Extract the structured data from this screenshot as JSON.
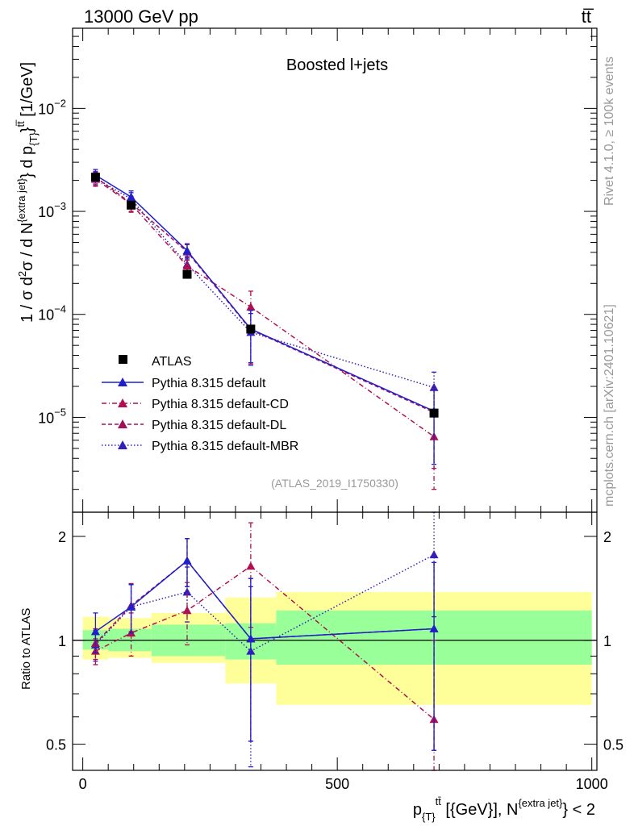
{
  "header": {
    "left": "13000 GeV pp",
    "right": "tt̅"
  },
  "side_labels": {
    "rivet": "Rivet 4.1.0, ≥ 100k events",
    "mcplots": "mcplots.cern.ch [arXiv:2401.10621]"
  },
  "colors": {
    "atlas": "#000000",
    "default": "#1f1fcc",
    "cd": "#b0104f",
    "dl": "#a0105a",
    "mbr": "#3320b8",
    "band_inner": "#99ff99",
    "band_outer": "#ffff99"
  },
  "chart_data": [
    {
      "type": "scatter",
      "scale": "log",
      "title": "Boosted l+jets",
      "analysis_tag": "(ATLAS_2019_I1750330)",
      "xlabel": "p_{T}^{tt̅} [{GeV}], N^{extra jet} < 2",
      "ylabel_parts": [
        "1 / σ d",
        "2",
        "σ / d N",
        "{extra jet}",
        "} d p",
        "{T}",
        "}",
        "tt̅",
        " [1/GeV]"
      ],
      "xlim": [
        -20,
        1010
      ],
      "ylim": [
        1.2e-06,
        0.06
      ],
      "x_ticks": [
        0,
        500,
        1000
      ],
      "y_ticks": [
        {
          "value": 1e-05,
          "base": "10",
          "exp": "−5"
        },
        {
          "value": 0.0001,
          "base": "10",
          "exp": "−4"
        },
        {
          "value": 0.001,
          "base": "10",
          "exp": "−3"
        },
        {
          "value": 0.01,
          "base": "10",
          "exp": "−2"
        }
      ],
      "x": [
        25,
        95,
        205,
        330,
        690
      ],
      "bin_edges": [
        0,
        50,
        135,
        280,
        380,
        1000
      ],
      "series": [
        {
          "name": "ATLAS",
          "style": "data",
          "values": [
            0.00215,
            0.00115,
            0.000245,
            7.2e-05,
            1.1e-05
          ]
        },
        {
          "name": "Pythia 8.315 default",
          "style": "solid",
          "values": [
            0.00225,
            0.00138,
            0.000415,
            7.2e-05,
            1.15e-05
          ],
          "err": [
            0.0003,
            0.0002,
            7e-05,
            3.8e-05,
            8e-06
          ]
        },
        {
          "name": "Pythia 8.315 default-CD",
          "style": "dashdot",
          "values": [
            0.00205,
            0.00118,
            0.000295,
            0.000118,
            6.5e-06
          ],
          "err": [
            0.0003,
            0.0002,
            6e-05,
            5e-05,
            4.5e-06
          ]
        },
        {
          "name": "Pythia 8.315 default-DL",
          "style": "dashed",
          "values": [
            0.00215,
            0.0012,
            0.000405,
            7.1e-05,
            1.12e-05
          ],
          "err": [
            0.0003,
            0.0002,
            7e-05,
            3.8e-05,
            8e-06
          ]
        },
        {
          "name": "Pythia 8.315 default-MBR",
          "style": "dotted",
          "values": [
            0.0021,
            0.00132,
            0.000305,
            6.7e-05,
            1.95e-05
          ],
          "err": [
            0.0003,
            0.0002,
            6e-05,
            3.5e-05,
            8e-06
          ]
        }
      ]
    },
    {
      "type": "scatter",
      "scale": "log",
      "ylabel": "Ratio to ATLAS",
      "xlim": [
        -20,
        1010
      ],
      "ylim": [
        0.42,
        2.35
      ],
      "x_ticks": [
        0,
        500,
        1000
      ],
      "y_ticks": [
        0.5,
        1,
        2
      ],
      "y_tick_labels": [
        "0.5",
        "1",
        "2"
      ],
      "x": [
        25,
        95,
        205,
        330,
        690
      ],
      "bin_edges": [
        0,
        50,
        135,
        280,
        380,
        1000
      ],
      "band_inner": [
        [
          0.94,
          1.07
        ],
        [
          0.93,
          1.08
        ],
        [
          0.9,
          1.11
        ],
        [
          0.88,
          1.12
        ],
        [
          0.85,
          1.22
        ]
      ],
      "band_outer": [
        [
          0.88,
          1.17
        ],
        [
          0.89,
          1.16
        ],
        [
          0.86,
          1.2
        ],
        [
          0.75,
          1.33
        ],
        [
          0.65,
          1.38
        ]
      ],
      "series": [
        {
          "name": "Pythia 8.315 default",
          "style": "solid",
          "values": [
            1.06,
            1.25,
            1.7,
            1.01,
            1.08
          ],
          "err": [
            0.14,
            0.2,
            0.27,
            0.5,
            0.6
          ]
        },
        {
          "name": "Pythia 8.315 default-CD",
          "style": "dashdot",
          "values": [
            0.93,
            1.05,
            1.22,
            1.64,
            0.59
          ],
          "err": [
            0.08,
            0.15,
            0.25,
            0.55,
            0.41
          ]
        },
        {
          "name": "Pythia 8.315 default-DL",
          "style": "dashed",
          "values": [
            0.98,
            1.26,
            1.7,
            1.01,
            1.08
          ],
          "err": [
            0.1,
            0.2,
            0.27,
            0.5,
            0.6
          ]
        },
        {
          "name": "Pythia 8.315 default-MBR",
          "style": "dotted",
          "values": [
            0.97,
            1.25,
            1.38,
            0.93,
            1.77
          ],
          "err": [
            0.1,
            0.2,
            0.25,
            0.5,
            0.6
          ]
        }
      ]
    }
  ]
}
